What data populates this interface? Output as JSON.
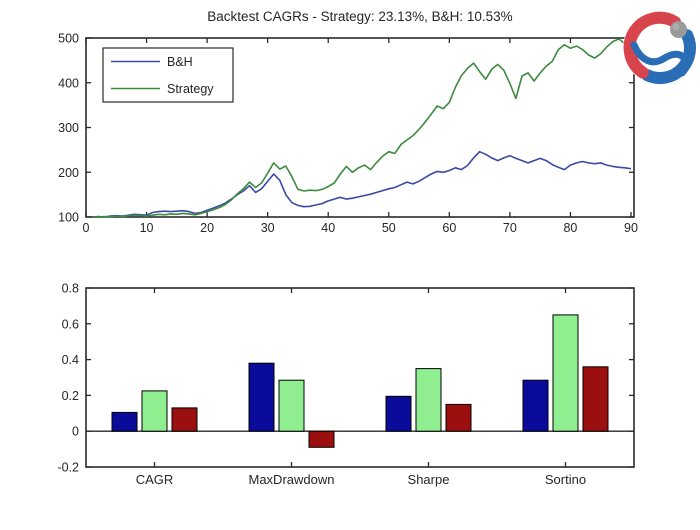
{
  "figure": {
    "background": "#ffffff"
  },
  "logo": {
    "red": "#d8444c",
    "blue": "#2a6cb5",
    "ball": "#9a9a9a",
    "ball_highlight": "#bdbdbd"
  },
  "chart_data": [
    {
      "type": "line",
      "title": "Backtest CAGRs - Strategy: 23.13%, B&H: 10.53%",
      "xlabel": "",
      "ylabel": "",
      "xlim": [
        0,
        90
      ],
      "ylim": [
        100,
        500
      ],
      "xticks": [
        0,
        10,
        20,
        30,
        40,
        50,
        60,
        70,
        80,
        90
      ],
      "yticks": [
        100,
        200,
        300,
        400,
        500
      ],
      "grid": false,
      "legend_position": "top-left",
      "x_start": 1,
      "series": [
        {
          "name": "B&H",
          "color": "#3a4aa5",
          "values": [
            100,
            101,
            100,
            102,
            103,
            102,
            104,
            106,
            105,
            104,
            110,
            112,
            113,
            112,
            113,
            114,
            112,
            108,
            110,
            115,
            120,
            125,
            131,
            140,
            150,
            158,
            170,
            155,
            163,
            180,
            196,
            182,
            150,
            132,
            126,
            123,
            124,
            127,
            130,
            136,
            140,
            144,
            140,
            142,
            145,
            148,
            151,
            155,
            159,
            163,
            166,
            172,
            178,
            174,
            180,
            188,
            196,
            202,
            200,
            204,
            210,
            206,
            215,
            232,
            246,
            240,
            232,
            226,
            232,
            237,
            231,
            226,
            221,
            226,
            231,
            226,
            217,
            211,
            206,
            216,
            221,
            224,
            221,
            219,
            221,
            216,
            213,
            211,
            210,
            208
          ]
        },
        {
          "name": "Strategy",
          "color": "#3d8b40",
          "values": [
            100,
            100,
            101,
            100,
            102,
            101,
            103,
            104,
            103,
            102,
            104,
            106,
            105,
            107,
            106,
            108,
            107,
            105,
            108,
            112,
            116,
            121,
            128,
            138,
            152,
            163,
            178,
            166,
            176,
            198,
            221,
            207,
            214,
            190,
            162,
            158,
            160,
            159,
            162,
            168,
            176,
            196,
            213,
            200,
            210,
            216,
            206,
            222,
            236,
            246,
            242,
            262,
            272,
            282,
            296,
            312,
            330,
            348,
            342,
            356,
            390,
            416,
            432,
            444,
            425,
            408,
            430,
            441,
            428,
            398,
            365,
            415,
            422,
            404,
            422,
            437,
            448,
            474,
            485,
            477,
            482,
            474,
            462,
            455,
            465,
            480,
            492,
            498,
            487,
            492
          ]
        }
      ]
    },
    {
      "type": "bar",
      "title": "",
      "categories": [
        "CAGR",
        "MaxDrawdown",
        "Sharpe",
        "Sortino"
      ],
      "ylim": [
        -0.2,
        0.8
      ],
      "yticks": [
        -0.2,
        0,
        0.2,
        0.4,
        0.6,
        0.8
      ],
      "grid": false,
      "series": [
        {
          "name": "bar-series-1",
          "color": "#0b0b9b",
          "values": [
            0.105,
            0.38,
            0.195,
            0.285
          ]
        },
        {
          "name": "bar-series-2",
          "color": "#8fee8f",
          "values": [
            0.225,
            0.285,
            0.35,
            0.65
          ]
        },
        {
          "name": "bar-series-3",
          "color": "#9c0f0f",
          "values": [
            0.13,
            -0.09,
            0.15,
            0.36
          ]
        }
      ]
    }
  ]
}
